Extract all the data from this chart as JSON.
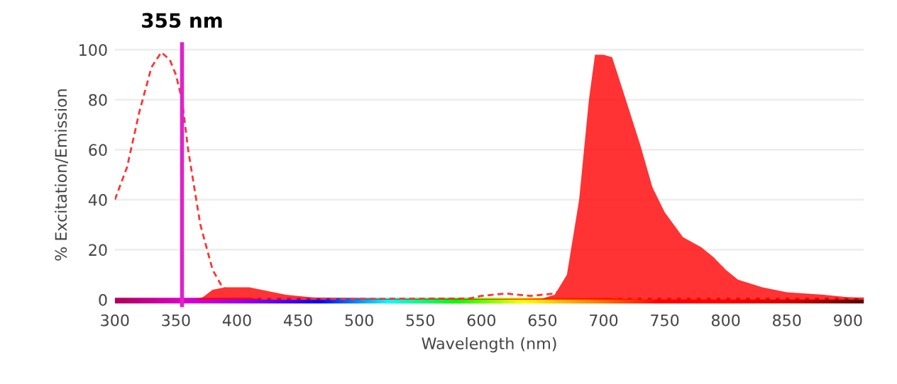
{
  "chart_data": {
    "type": "area",
    "xlabel": "Wavelength (nm)",
    "ylabel": "% Excitation/Emission",
    "series": [
      {
        "type": "line",
        "color": "#ff3333",
        "line_style": "dashed",
        "x": [
          300,
          310,
          320,
          330,
          338,
          345,
          350,
          355,
          360,
          370,
          380,
          388,
          400,
          420,
          450,
          500,
          590,
          600,
          620,
          640,
          660,
          670,
          685,
          695,
          705,
          730,
          800,
          913
        ],
        "values": [
          40,
          53,
          75,
          93,
          99,
          96,
          90,
          80,
          60,
          30,
          12,
          5,
          2,
          0.5,
          0.3,
          0.3,
          0.5,
          1.5,
          2.5,
          1.5,
          2.5,
          5,
          5,
          3,
          1,
          0.5,
          0.5,
          0.5
        ]
      },
      {
        "color": "#ff0000",
        "x": [
          365,
          372,
          380,
          390,
          410,
          420,
          430,
          440,
          460,
          480,
          600,
          650,
          660,
          670,
          680,
          688,
          693,
          700,
          707,
          715,
          730,
          740,
          750,
          765,
          780,
          790,
          800,
          810,
          830,
          850,
          880,
          900,
          913
        ],
        "values": [
          0,
          1,
          4,
          5,
          5,
          4,
          3,
          2,
          1,
          0.3,
          0.3,
          0.5,
          2,
          10,
          40,
          80,
          98,
          98,
          97,
          85,
          62,
          45,
          35,
          25,
          21,
          17,
          12,
          8,
          5,
          3,
          2,
          1,
          0.8
        ]
      }
    ],
    "xlim": [
      300,
      913
    ],
    "ylim": [
      -3,
      103
    ],
    "xticks": [
      300,
      350,
      400,
      450,
      500,
      550,
      600,
      650,
      700,
      750,
      800,
      850,
      900
    ],
    "yticks": [
      0,
      20,
      40,
      60,
      80,
      100
    ],
    "grid": "y",
    "ref_lines": [
      {
        "axis": "x",
        "value": 355,
        "label": "355 nm",
        "color": "#dd22cc"
      }
    ]
  }
}
